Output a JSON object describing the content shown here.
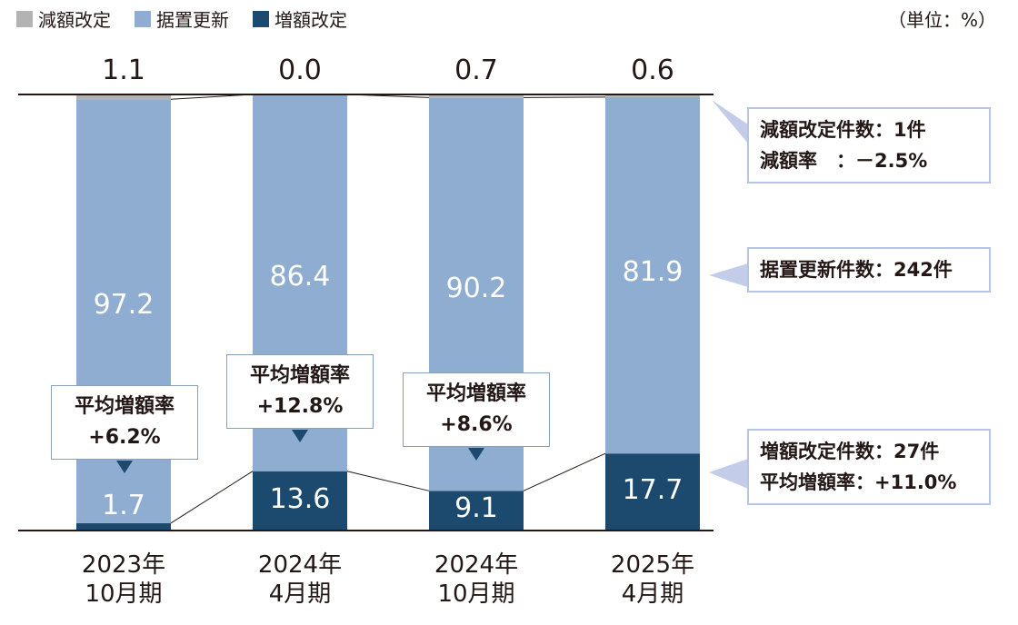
{
  "unit_label": "（単位：%）",
  "colors": {
    "decrease": "#b3b3b3",
    "unchanged": "#8fadd0",
    "increase": "#1c4a6e"
  },
  "chart_data": {
    "type": "bar",
    "stacked": true,
    "categories": [
      [
        "2023年",
        "10月期"
      ],
      [
        "2024年",
        "4月期"
      ],
      [
        "2024年",
        "10月期"
      ],
      [
        "2025年",
        "4月期"
      ]
    ],
    "series": [
      {
        "name": "減額改定",
        "values": [
          1.1,
          0.0,
          0.7,
          0.6
        ],
        "label_position": "top"
      },
      {
        "name": "据置更新",
        "values": [
          97.2,
          86.4,
          90.2,
          81.9
        ]
      },
      {
        "name": "増額改定",
        "values": [
          1.7,
          13.6,
          9.1,
          17.7
        ]
      }
    ],
    "ylim": [
      0,
      100
    ],
    "legend": "top-left"
  },
  "callouts": [
    {
      "title": "平均増額率",
      "value": "+6.2%"
    },
    {
      "title": "平均増額率",
      "value": "+12.8%"
    },
    {
      "title": "平均増額率",
      "value": "+8.6%"
    }
  ],
  "notes": {
    "decrease": [
      "減額改定件数：1件",
      "減額率　：－2.5%"
    ],
    "unchanged": [
      "据置更新件数：242件"
    ],
    "increase": [
      "増額改定件数：27件",
      "平均増額率：+11.0%"
    ]
  }
}
